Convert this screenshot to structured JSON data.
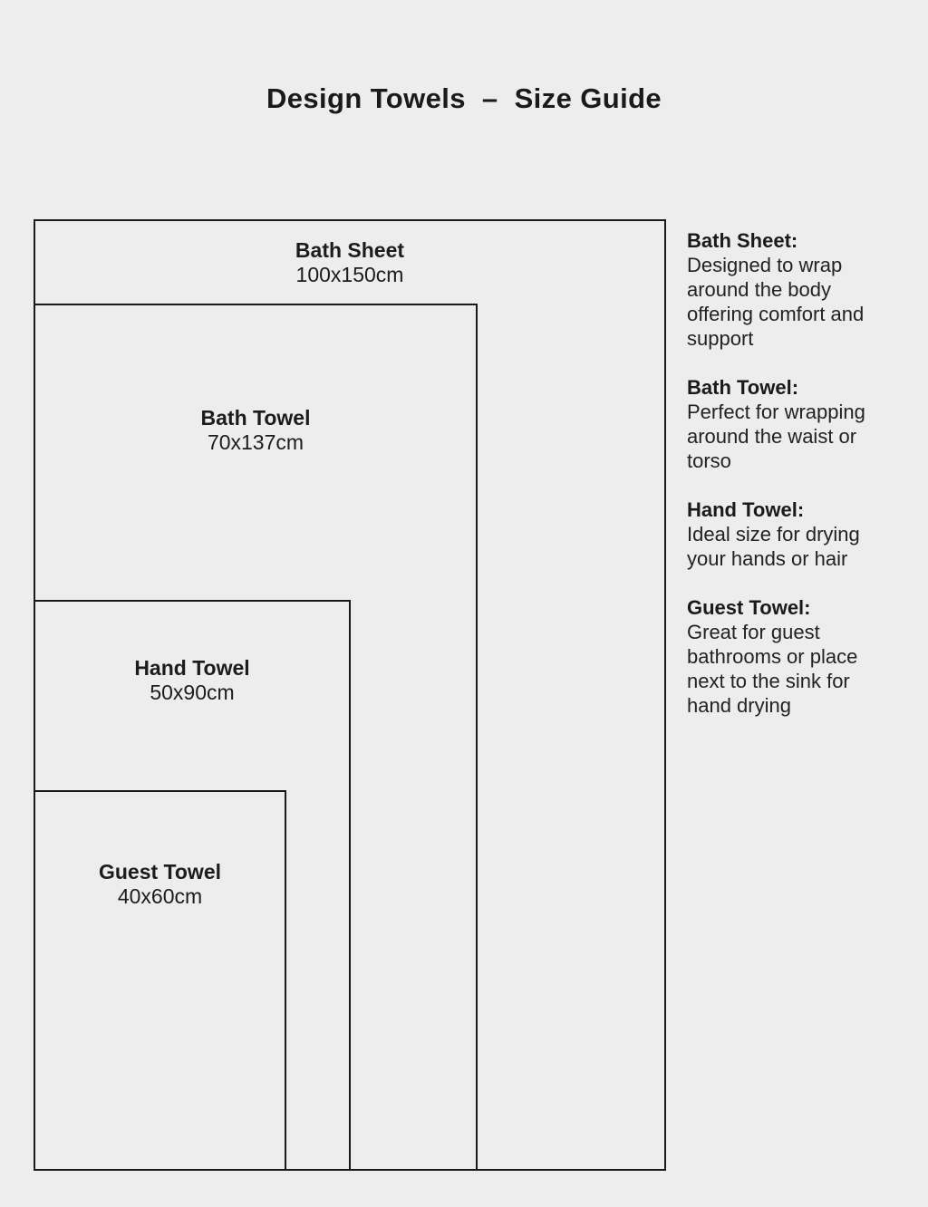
{
  "title": "Design Towels  –  Size Guide",
  "diagram": {
    "towels": [
      {
        "name": "Bath Sheet",
        "size": "100x150cm"
      },
      {
        "name": "Bath Towel",
        "size": "70x137cm"
      },
      {
        "name": "Hand Towel",
        "size": "50x90cm"
      },
      {
        "name": "Guest Towel",
        "size": "40x60cm"
      }
    ]
  },
  "descriptions": [
    {
      "label": "Bath Sheet:",
      "text": "Designed to wrap\naround the body\noffering comfort and\nsupport"
    },
    {
      "label": "Bath Towel:",
      "text": "Perfect for wrapping\naround the waist or\ntorso"
    },
    {
      "label": "Hand Towel:",
      "text": "Ideal size for drying\nyour hands or hair"
    },
    {
      "label": "Guest Towel:",
      "text": "Great for guest\nbathrooms or place\nnext to the sink for\nhand drying"
    }
  ],
  "colors": {
    "background": "#ededed",
    "line": "#191919",
    "text": "#1c1c1c"
  }
}
